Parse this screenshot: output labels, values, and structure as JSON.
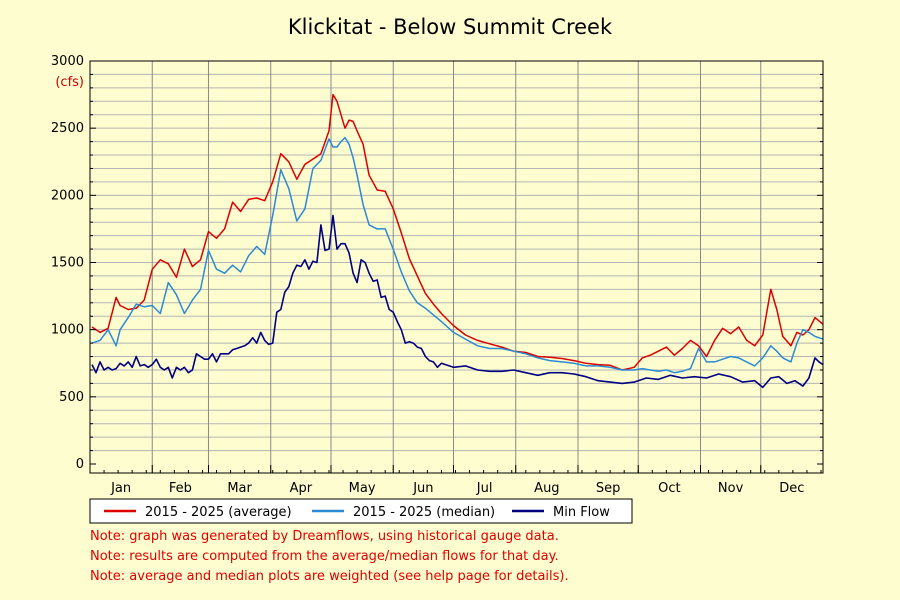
{
  "chart_data": {
    "type": "line",
    "title": "Klickitat - Below Summit Creek",
    "y_unit": "(cfs)",
    "ylim": [
      0,
      3000
    ],
    "y_ticks": [
      0,
      500,
      1000,
      1500,
      2000,
      2500,
      3000
    ],
    "xlim": [
      0,
      365
    ],
    "months": [
      "Jan",
      "Feb",
      "Mar",
      "Apr",
      "May",
      "Jun",
      "Jul",
      "Aug",
      "Sep",
      "Oct",
      "Nov",
      "Dec"
    ],
    "grid": true,
    "legend_position": "bottom",
    "series": [
      {
        "name": "2015 - 2025 (average)",
        "color": "#dd0000",
        "x": [
          1,
          5,
          9,
          13,
          15,
          19,
          23,
          27,
          31,
          35,
          39,
          43,
          47,
          51,
          55,
          59,
          63,
          67,
          71,
          75,
          79,
          83,
          87,
          91,
          95,
          99,
          103,
          107,
          111,
          115,
          119,
          121,
          123,
          125,
          127,
          129,
          131,
          133,
          136,
          139,
          143,
          147,
          151,
          155,
          159,
          163,
          167,
          171,
          175,
          181,
          187,
          193,
          199,
          205,
          211,
          217,
          223,
          229,
          235,
          241,
          247,
          253,
          259,
          265,
          271,
          275,
          279,
          283,
          287,
          291,
          295,
          299,
          303,
          307,
          311,
          315,
          319,
          323,
          327,
          331,
          335,
          339,
          342,
          345,
          349,
          352,
          355,
          358,
          361,
          365
        ],
        "y": [
          1020,
          980,
          1010,
          1240,
          1180,
          1150,
          1160,
          1220,
          1450,
          1520,
          1490,
          1390,
          1600,
          1470,
          1520,
          1730,
          1680,
          1750,
          1950,
          1880,
          1970,
          1980,
          1960,
          2100,
          2310,
          2250,
          2120,
          2230,
          2270,
          2310,
          2480,
          2750,
          2700,
          2600,
          2500,
          2560,
          2550,
          2480,
          2380,
          2150,
          2040,
          2030,
          1900,
          1720,
          1530,
          1400,
          1270,
          1190,
          1120,
          1030,
          960,
          920,
          895,
          870,
          840,
          830,
          800,
          795,
          785,
          770,
          750,
          740,
          735,
          700,
          720,
          790,
          810,
          840,
          870,
          810,
          860,
          920,
          880,
          800,
          920,
          1010,
          970,
          1020,
          920,
          880,
          960,
          1300,
          1150,
          950,
          880,
          980,
          960,
          1000,
          1090,
          1040
        ]
      },
      {
        "name": "2015 - 2025 (median)",
        "color": "#2a8ad4",
        "x": [
          1,
          5,
          9,
          13,
          15,
          19,
          23,
          27,
          31,
          35,
          39,
          43,
          47,
          51,
          55,
          59,
          63,
          67,
          71,
          75,
          79,
          83,
          87,
          91,
          95,
          99,
          103,
          107,
          111,
          115,
          119,
          121,
          123,
          125,
          127,
          129,
          131,
          133,
          136,
          139,
          143,
          147,
          151,
          155,
          159,
          163,
          167,
          171,
          175,
          181,
          187,
          193,
          199,
          205,
          211,
          217,
          223,
          229,
          235,
          241,
          247,
          253,
          259,
          265,
          271,
          275,
          279,
          283,
          287,
          291,
          295,
          299,
          303,
          307,
          311,
          315,
          319,
          323,
          327,
          331,
          335,
          339,
          342,
          345,
          349,
          352,
          355,
          358,
          361,
          365
        ],
        "y": [
          900,
          920,
          1000,
          880,
          1000,
          1090,
          1190,
          1170,
          1180,
          1120,
          1350,
          1260,
          1120,
          1220,
          1300,
          1590,
          1450,
          1420,
          1480,
          1430,
          1550,
          1620,
          1560,
          1850,
          2190,
          2050,
          1810,
          1900,
          2200,
          2260,
          2420,
          2360,
          2360,
          2400,
          2430,
          2380,
          2280,
          2150,
          1930,
          1780,
          1750,
          1750,
          1600,
          1430,
          1290,
          1200,
          1160,
          1110,
          1060,
          980,
          930,
          880,
          860,
          860,
          840,
          820,
          790,
          770,
          760,
          750,
          730,
          730,
          720,
          700,
          700,
          710,
          700,
          690,
          700,
          680,
          690,
          710,
          860,
          760,
          760,
          780,
          800,
          790,
          760,
          730,
          790,
          880,
          840,
          790,
          760,
          900,
          1000,
          980,
          950,
          930
        ]
      },
      {
        "name": "Min Flow",
        "color": "#000080",
        "x": [
          1,
          3,
          5,
          7,
          9,
          11,
          13,
          15,
          17,
          19,
          21,
          23,
          25,
          27,
          29,
          31,
          33,
          35,
          37,
          39,
          41,
          43,
          45,
          47,
          49,
          51,
          53,
          55,
          57,
          59,
          61,
          63,
          65,
          67,
          69,
          71,
          73,
          75,
          77,
          79,
          81,
          83,
          85,
          87,
          89,
          91,
          93,
          95,
          97,
          99,
          101,
          103,
          105,
          107,
          109,
          111,
          113,
          115,
          117,
          119,
          121,
          123,
          125,
          127,
          129,
          131,
          133,
          135,
          137,
          139,
          141,
          143,
          145,
          147,
          149,
          151,
          153,
          155,
          157,
          159,
          161,
          163,
          165,
          167,
          169,
          171,
          173,
          175,
          181,
          187,
          193,
          199,
          205,
          211,
          217,
          223,
          229,
          235,
          241,
          247,
          253,
          259,
          265,
          271,
          277,
          283,
          289,
          295,
          301,
          307,
          313,
          319,
          325,
          331,
          335,
          339,
          343,
          347,
          351,
          355,
          358,
          361,
          363,
          365
        ],
        "y": [
          740,
          680,
          760,
          700,
          720,
          700,
          710,
          750,
          730,
          760,
          720,
          800,
          730,
          740,
          720,
          740,
          780,
          720,
          700,
          720,
          640,
          720,
          700,
          720,
          680,
          700,
          820,
          800,
          780,
          780,
          820,
          760,
          820,
          820,
          820,
          850,
          860,
          870,
          880,
          900,
          940,
          900,
          980,
          920,
          890,
          900,
          1130,
          1150,
          1280,
          1320,
          1420,
          1480,
          1470,
          1520,
          1450,
          1510,
          1500,
          1780,
          1590,
          1600,
          1850,
          1600,
          1640,
          1640,
          1570,
          1420,
          1350,
          1520,
          1500,
          1420,
          1360,
          1370,
          1240,
          1250,
          1150,
          1130,
          1060,
          1000,
          900,
          910,
          900,
          870,
          860,
          800,
          770,
          760,
          720,
          750,
          720,
          730,
          700,
          690,
          690,
          700,
          680,
          660,
          680,
          680,
          670,
          650,
          620,
          610,
          600,
          610,
          640,
          630,
          660,
          640,
          650,
          640,
          670,
          650,
          610,
          620,
          570,
          640,
          650,
          600,
          620,
          580,
          640,
          790,
          760,
          740
        ]
      }
    ],
    "notes": [
      "Note: graph was generated by Dreamflows, using historical gauge data.",
      "Note: results are computed from the average/median flows for that day.",
      "Note: average and median plots are weighted (see help page for details)."
    ]
  }
}
